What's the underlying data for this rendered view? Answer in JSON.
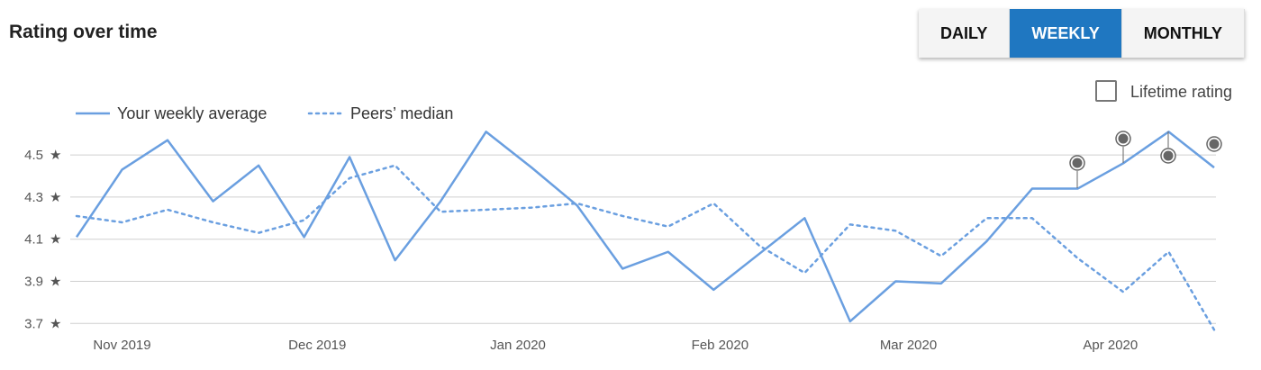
{
  "controls": {
    "periods": [
      "DAILY",
      "WEEKLY",
      "MONTHLY"
    ],
    "selected_index": 1,
    "checkbox_label": "Lifetime rating"
  },
  "chart_data": {
    "type": "line",
    "title": "Rating over time",
    "x": [
      0,
      1,
      2,
      3,
      4,
      5,
      6,
      7,
      8,
      9,
      10,
      11,
      12,
      13,
      14,
      15,
      16,
      17,
      18,
      19,
      20,
      21,
      22,
      23,
      24,
      25
    ],
    "xlim": [
      0,
      25
    ],
    "xticks": [
      {
        "value": 1,
        "label": "Nov 2019"
      },
      {
        "value": 5.29,
        "label": "Dec 2019"
      },
      {
        "value": 9.7,
        "label": "Jan 2020"
      },
      {
        "value": 14.14,
        "label": "Feb 2020"
      },
      {
        "value": 18.28,
        "label": "Mar 2020"
      },
      {
        "value": 22.72,
        "label": "Apr 2020"
      }
    ],
    "ylim": [
      3.65,
      4.65
    ],
    "yticks": [
      4.5,
      4.3,
      4.1,
      3.9,
      3.7
    ],
    "grid": true,
    "series": [
      {
        "name": "Your weekly average",
        "color": "#6a9fe0",
        "style": "solid",
        "values": [
          4.11,
          4.43,
          4.57,
          4.28,
          4.45,
          4.11,
          4.49,
          4.0,
          4.28,
          4.61,
          4.44,
          4.26,
          3.96,
          4.04,
          3.86,
          4.03,
          4.2,
          3.71,
          3.9,
          3.89,
          4.09,
          4.34,
          4.34,
          4.46,
          4.61,
          4.44
        ]
      },
      {
        "name": "Peers’ median",
        "color": "#6a9fe0",
        "style": "dotted",
        "values": [
          4.21,
          4.18,
          4.24,
          4.18,
          4.13,
          4.19,
          4.39,
          4.45,
          4.23,
          4.24,
          4.25,
          4.27,
          4.21,
          4.16,
          4.27,
          4.07,
          3.94,
          4.17,
          4.14,
          4.02,
          4.2,
          4.2,
          4.01,
          3.85,
          4.04,
          3.67
        ]
      }
    ]
  }
}
